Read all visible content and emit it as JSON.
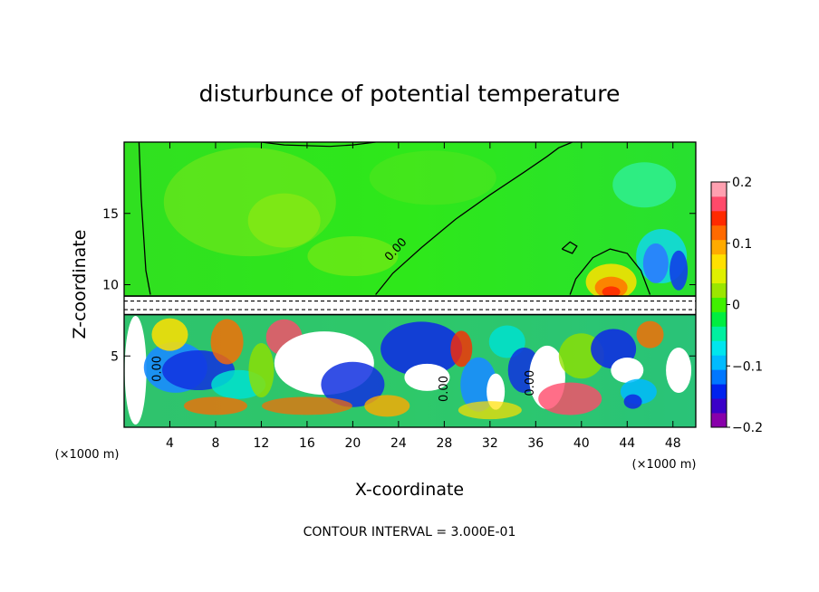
{
  "chart_data": {
    "type": "heatmap",
    "title": "disturbunce of potential temperature",
    "xlabel": "X-coordinate",
    "ylabel": "Z-coordinate",
    "x_unit_note": "(×1000 m)",
    "y_unit_note": "(×1000 m)",
    "footer": "CONTOUR INTERVAL = 3.000E-01",
    "xlim": [
      0,
      50
    ],
    "ylim": [
      0,
      20
    ],
    "x_ticks": [
      4,
      8,
      12,
      16,
      20,
      24,
      28,
      32,
      36,
      40,
      44,
      48
    ],
    "y_ticks": [
      5,
      10,
      15
    ],
    "colorbar": {
      "range": [
        -0.2,
        0.2
      ],
      "tick_values": [
        0.2,
        0.1,
        0,
        -0.1,
        -0.2
      ],
      "tick_labels": [
        "0.2",
        "0.1",
        "0",
        "−0.1",
        "−0.2"
      ],
      "colors": [
        "#8800aa",
        "#3b00c8",
        "#0022ee",
        "#0077ff",
        "#00bbff",
        "#00e6ee",
        "#00f0a0",
        "#00ee40",
        "#40f000",
        "#9be600",
        "#dff000",
        "#ffe000",
        "#ffaa00",
        "#ff6a00",
        "#ff2a00",
        "#ff4a6a",
        "#ffa0b0"
      ]
    },
    "contour_labels": [
      {
        "text": "0.00",
        "x": 24,
        "z": 12.3,
        "angle": -48
      },
      {
        "text": "0.00",
        "x": 3.2,
        "z": 4.1,
        "angle": -90
      },
      {
        "text": "0.00",
        "x": 28.3,
        "z": 2.7,
        "angle": -90
      },
      {
        "text": "0.00",
        "x": 35.8,
        "z": 3.1,
        "angle": -90
      }
    ],
    "zero_contour_upper": [
      [
        1.3,
        20
      ],
      [
        1.5,
        16
      ],
      [
        1.9,
        11
      ],
      [
        2.3,
        9.3
      ]
    ],
    "zero_contour_main": [
      [
        22,
        9.3
      ],
      [
        23.5,
        10.8
      ],
      [
        26,
        12.6
      ],
      [
        29,
        14.6
      ],
      [
        32,
        16.3
      ],
      [
        35,
        17.9
      ],
      [
        37,
        19
      ],
      [
        38,
        19.6
      ],
      [
        39.2,
        20
      ]
    ],
    "zero_contour_bump": [
      [
        39,
        9.3
      ],
      [
        39.5,
        10.4
      ],
      [
        41,
        11.9
      ],
      [
        42.5,
        12.5
      ],
      [
        44,
        12.2
      ],
      [
        45.2,
        11
      ],
      [
        46,
        9.3
      ]
    ],
    "zero_contour_blob": [
      [
        38.3,
        12.5
      ],
      [
        39,
        13
      ],
      [
        39.6,
        12.7
      ],
      [
        39.2,
        12.2
      ],
      [
        38.3,
        12.5
      ]
    ],
    "top_boundary_contour": [
      [
        12,
        20
      ],
      [
        14,
        19.8
      ],
      [
        18,
        19.7
      ],
      [
        20,
        19.8
      ],
      [
        22,
        20
      ]
    ],
    "layer_band": {
      "z_bottom": 7.9,
      "z_top": 9.2
    }
  }
}
